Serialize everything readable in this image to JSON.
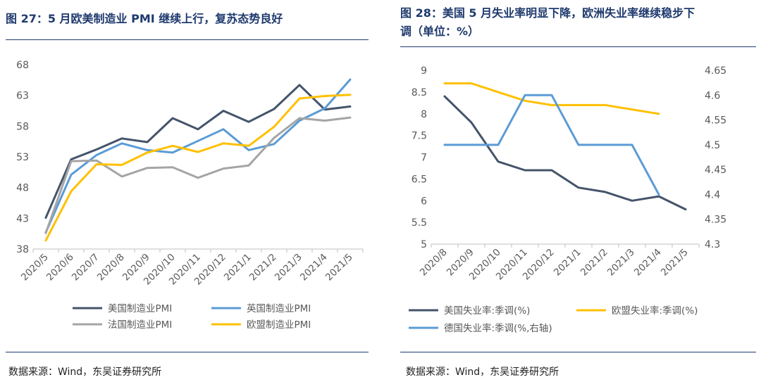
{
  "left": {
    "title": "图 27：5 月欧美制造业 PMI 继续上行，复苏态势良好",
    "source": "数据来源：Wind，东吴证券研究所"
  },
  "right": {
    "title_line1": "图 28：美国 5 月失业率明显下降，欧洲失业率继续稳步下",
    "title_line2": "调（单位：%）",
    "source": "数据来源：Wind，东吴证券研究所"
  },
  "colors": {
    "navy": "#44546a",
    "blue": "#5b9bd5",
    "gray": "#a5a5a5",
    "yellow": "#ffc000",
    "title": "#1f3a6e"
  },
  "chart_data": [
    {
      "type": "line",
      "title": "",
      "x": [
        "2020/5",
        "2020/6",
        "2020/7",
        "2020/8",
        "2020/9",
        "2020/10",
        "2020/11",
        "2020/12",
        "2021/1",
        "2021/2",
        "2021/3",
        "2021/4",
        "2021/5"
      ],
      "ylim": [
        38,
        68
      ],
      "yticks": [
        38,
        43,
        48,
        53,
        58,
        63,
        68
      ],
      "grid": false,
      "legend": "bottom",
      "series": [
        {
          "name": "美国制造业PMI",
          "color": "#44546a",
          "values": [
            43.1,
            52.6,
            54.2,
            56.0,
            55.4,
            59.3,
            57.5,
            60.5,
            58.7,
            60.8,
            64.7,
            60.7,
            61.2
          ]
        },
        {
          "name": "英国制造业PMI",
          "color": "#5b9bd5",
          "values": [
            40.7,
            50.1,
            53.3,
            55.2,
            54.1,
            53.7,
            55.6,
            57.5,
            54.1,
            55.1,
            58.9,
            60.9,
            65.6
          ]
        },
        {
          "name": "法国制造业PMI",
          "color": "#a5a5a5",
          "values": [
            40.6,
            52.3,
            52.4,
            49.8,
            51.2,
            51.3,
            49.6,
            51.1,
            51.6,
            56.1,
            59.3,
            58.9,
            59.4
          ]
        },
        {
          "name": "欧盟制造业PMI",
          "color": "#ffc000",
          "values": [
            39.4,
            47.4,
            51.8,
            51.7,
            53.7,
            54.8,
            53.8,
            55.2,
            54.8,
            57.9,
            62.5,
            62.9,
            63.1
          ]
        }
      ]
    },
    {
      "type": "line",
      "title": "",
      "x": [
        "2020/8",
        "2020/9",
        "2020/10",
        "2020/11",
        "2020/12",
        "2021/1",
        "2021/2",
        "2021/3",
        "2021/4",
        "2021/5"
      ],
      "ylim": [
        5,
        9
      ],
      "yticks": [
        "5",
        "5.5",
        "6",
        "6.5",
        "7",
        "7.5",
        "8",
        "8.5",
        "9"
      ],
      "y2lim": [
        4.3,
        4.65
      ],
      "y2ticks": [
        "4.3",
        "4.35",
        "4.4",
        "4.45",
        "4.5",
        "4.55",
        "4.6",
        "4.65"
      ],
      "grid": false,
      "legend": "bottom",
      "series": [
        {
          "name": "美国失业率:季调(%)",
          "color": "#44546a",
          "axis": "left",
          "values": [
            8.4,
            7.8,
            6.9,
            6.7,
            6.7,
            6.3,
            6.2,
            6.0,
            6.1,
            5.8
          ]
        },
        {
          "name": "欧盟失业率:季调(%)",
          "color": "#ffc000",
          "axis": "left",
          "values": [
            8.7,
            8.7,
            8.5,
            8.3,
            8.2,
            8.2,
            8.2,
            8.1,
            8.0,
            null
          ]
        },
        {
          "name": "德国失业率:季调(%,右轴)",
          "color": "#5b9bd5",
          "axis": "right",
          "values": [
            4.5,
            4.5,
            4.5,
            4.6,
            4.6,
            4.5,
            4.5,
            4.5,
            4.4,
            null
          ]
        }
      ]
    }
  ]
}
